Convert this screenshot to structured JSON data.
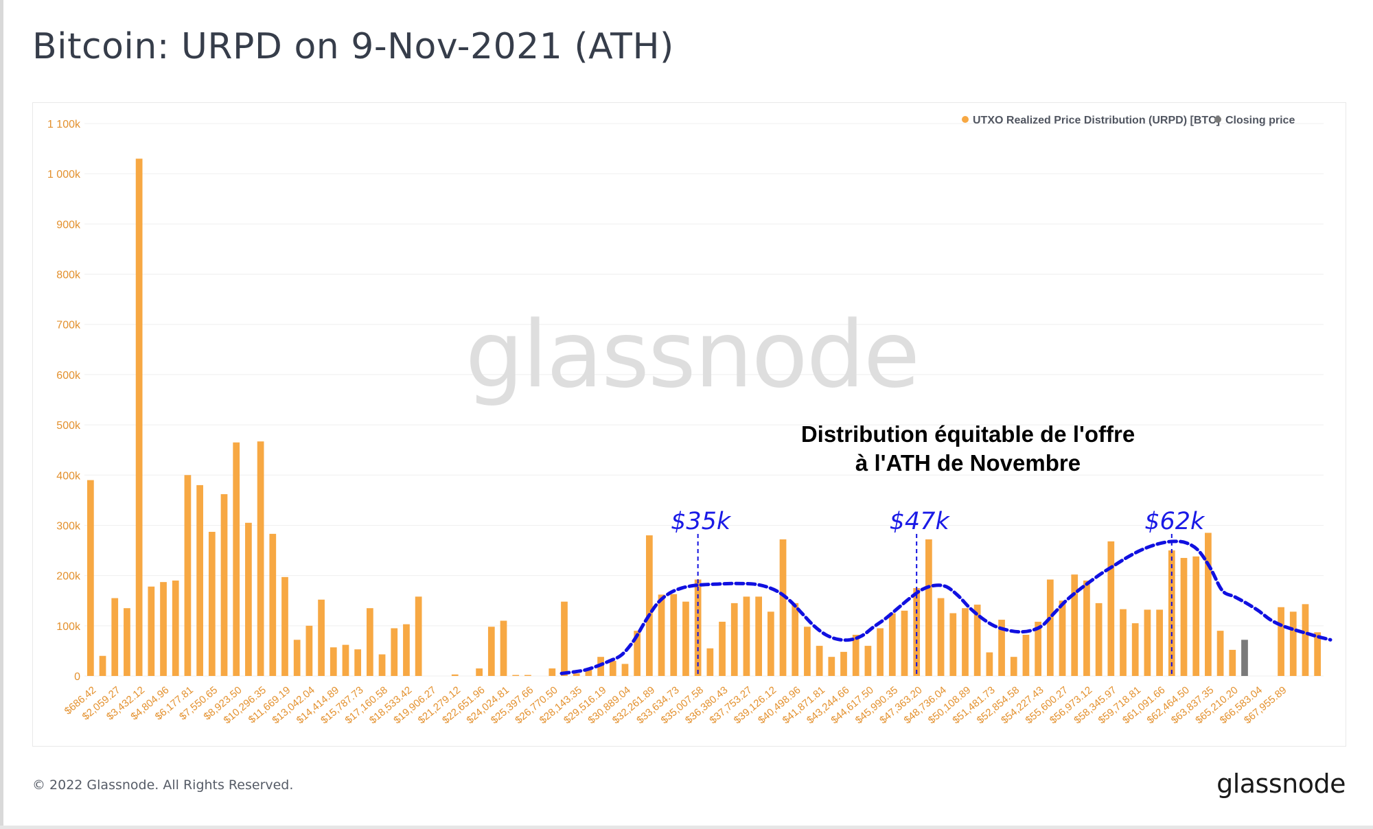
{
  "title": "Bitcoin: URPD on 9-Nov-2021 (ATH)",
  "footer": {
    "copyright": "© 2022 Glassnode. All Rights Reserved.",
    "logo": "glassnode"
  },
  "watermark": "glassnode",
  "colors": {
    "bar": "#f7a843",
    "closing_bar": "#7a7a7a",
    "curve": "#1010e0",
    "label": "#1a1ae6",
    "axis_text": "#e3902d",
    "title": "#363d4a"
  },
  "chart_data": {
    "type": "bar",
    "y_ticks": [
      "0",
      "100k",
      "200k",
      "300k",
      "400k",
      "500k",
      "600k",
      "700k",
      "800k",
      "900k",
      "1 000k",
      "1 100k"
    ],
    "ylim": [
      0,
      1100000
    ],
    "x_tick_labels": [
      "$686.42",
      "$2,059.27",
      "$3,432.12",
      "$4,804.96",
      "$6,177.81",
      "$7,550.65",
      "$8,923.50",
      "$10,296.35",
      "$11,669.19",
      "$13,042.04",
      "$14,414.89",
      "$15,787.73",
      "$17,160.58",
      "$18,533.42",
      "$19,906.27",
      "$21,279.12",
      "$22,651.96",
      "$24,024.81",
      "$25,397.66",
      "$26,770.50",
      "$28,143.35",
      "$29,516.19",
      "$30,889.04",
      "$32,261.89",
      "$33,634.73",
      "$35,007.58",
      "$36,380.43",
      "$37,753.27",
      "$39,126.12",
      "$40,498.96",
      "$41,871.81",
      "$43,244.66",
      "$44,617.50",
      "$45,990.35",
      "$47,363.20",
      "$48,736.04",
      "$50,108.89",
      "$51,481.73",
      "$52,854.58",
      "$54,227.43",
      "$55,600.27",
      "$56,973.12",
      "$58,345.97",
      "$59,718.81",
      "$61,091.66",
      "$62,464.50",
      "$63,837.35",
      "$65,210.20",
      "$66,583.04",
      "$67,955.89"
    ],
    "bar_values": [
      390000,
      40000,
      155000,
      135000,
      1030000,
      178000,
      187000,
      190000,
      400000,
      380000,
      287000,
      362000,
      465000,
      305000,
      467000,
      283000,
      197000,
      72000,
      100000,
      152000,
      57000,
      62000,
      53000,
      135000,
      43000,
      95000,
      103000,
      158000,
      0,
      0,
      3000,
      0,
      15000,
      98000,
      110000,
      2000,
      2000,
      0,
      15000,
      148000,
      5000,
      12000,
      38000,
      30000,
      24000,
      90000,
      280000,
      162000,
      163000,
      148000,
      192000,
      55000,
      108000,
      145000,
      158000,
      158000,
      128000,
      272000,
      145000,
      98000,
      60000,
      38000,
      48000,
      82000,
      60000,
      95000,
      125000,
      130000,
      175000,
      272000,
      155000,
      125000,
      135000,
      142000,
      47000,
      112000,
      38000,
      82000,
      108000,
      192000,
      150000,
      202000,
      190000,
      145000,
      268000,
      133000,
      105000,
      132000,
      132000,
      250000,
      235000,
      238000,
      285000,
      90000,
      52000,
      72000,
      0,
      0,
      137000,
      128000,
      143000,
      87000
    ],
    "closing_price_bar_indices": [
      95
    ],
    "series": [
      {
        "name": "UTXO Realized Price Distribution (URPD) [BTC]"
      },
      {
        "name": "Closing price"
      }
    ],
    "legend_position": "top-right",
    "grid": true,
    "annotation": {
      "text_lines": [
        "Distribution équitable de l'offre",
        "à l'ATH de Novembre"
      ],
      "peak_labels": [
        "$35k",
        "$47k",
        "$62k"
      ],
      "peak_bar_indices": [
        50,
        68,
        89
      ],
      "curve_y": [
        5000,
        8000,
        12000,
        20000,
        30000,
        42000,
        70000,
        110000,
        145000,
        165000,
        175000,
        180000,
        182000,
        183000,
        184000,
        184000,
        183000,
        178000,
        168000,
        150000,
        125000,
        100000,
        82000,
        73000,
        72000,
        80000,
        98000,
        115000,
        135000,
        155000,
        172000,
        180000,
        178000,
        160000,
        135000,
        115000,
        100000,
        92000,
        88000,
        90000,
        100000,
        125000,
        150000,
        170000,
        188000,
        205000,
        220000,
        235000,
        248000,
        258000,
        265000,
        268000,
        265000,
        250000,
        215000,
        170000,
        158000,
        145000,
        130000,
        112000,
        100000,
        92000,
        85000,
        78000,
        72000
      ]
    }
  }
}
